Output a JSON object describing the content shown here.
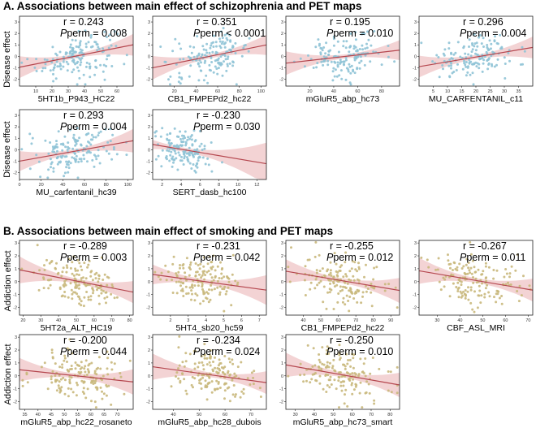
{
  "sections": {
    "a": {
      "title": "A. Associations between main effect of schizophrenia and PET maps",
      "ylabel": "Disease effect"
    },
    "b": {
      "title": "B. Associations between main effect of smoking and PET maps",
      "ylabel": "Addiction effect"
    }
  },
  "colors": {
    "schizophrenia_points": "#8fc3d6",
    "smoking_points": "#c9b87c",
    "fit_line": "#b5474f",
    "ci_band": "#efc4c6"
  },
  "chart_data": [
    {
      "type": "scatter",
      "section": "a",
      "xlabel": "5HT1b_P943_HC22",
      "r_text": "r = 0.243",
      "p_prefix": "P",
      "p_text": "perm = 0.008",
      "xlim": [
        0,
        70
      ],
      "ylim": [
        -2.6,
        3.5
      ],
      "xticks": [
        10,
        20,
        30,
        40,
        50,
        60
      ],
      "yticks": [
        -2,
        -1,
        0,
        1,
        2,
        3
      ],
      "fit": {
        "intercept": -0.95,
        "slope": 0.028
      },
      "x_center": 35,
      "x_spread": 12
    },
    {
      "type": "scatter",
      "section": "a",
      "xlabel": "CB1_FMPEPd2_hc22",
      "r_text": "r = 0.351",
      "p_prefix": "P",
      "p_text": "perm < 0.0001",
      "xlim": [
        0,
        105
      ],
      "ylim": [
        -2.6,
        3.5
      ],
      "xticks": [
        20,
        40,
        60,
        80,
        100
      ],
      "yticks": [
        -2,
        -1,
        0,
        1,
        2,
        3
      ],
      "fit": {
        "intercept": -1.0,
        "slope": 0.019
      },
      "x_center": 55,
      "x_spread": 18
    },
    {
      "type": "scatter",
      "section": "a",
      "xlabel": "mGluR5_abp_hc73",
      "r_text": "r = 0.195",
      "p_prefix": "P",
      "p_text": "perm = 0.010",
      "xlim": [
        0,
        95
      ],
      "ylim": [
        -2.6,
        3.5
      ],
      "xticks": [
        20,
        40,
        60,
        80
      ],
      "yticks": [
        -2,
        -1,
        0,
        1,
        2,
        3
      ],
      "fit": {
        "intercept": -0.6,
        "slope": 0.012
      },
      "x_center": 50,
      "x_spread": 16
    },
    {
      "type": "scatter",
      "section": "a",
      "xlabel": "MU_CARFENTANIL_c11",
      "r_text": "r = 0.296",
      "p_prefix": "P",
      "p_text": "perm = 0.004",
      "xlim": [
        0,
        40
      ],
      "ylim": [
        -2.6,
        3.5
      ],
      "xticks": [
        5,
        10,
        15,
        20,
        25,
        30,
        35
      ],
      "yticks": [
        -2,
        -1,
        0,
        1,
        2,
        3
      ],
      "fit": {
        "intercept": -0.9,
        "slope": 0.042
      },
      "x_center": 20,
      "x_spread": 7
    },
    {
      "type": "scatter",
      "section": "a",
      "xlabel": "MU_carfentanil_hc39",
      "r_text": "r = 0.293",
      "p_prefix": "P",
      "p_text": "perm = 0.004",
      "xlim": [
        0,
        105
      ],
      "ylim": [
        -2.6,
        3.5
      ],
      "xticks": [
        0,
        20,
        40,
        60,
        80,
        100
      ],
      "yticks": [
        -2,
        -1,
        0,
        1,
        2,
        3
      ],
      "fit": {
        "intercept": -1.0,
        "slope": 0.017
      },
      "x_center": 50,
      "x_spread": 18
    },
    {
      "type": "scatter",
      "section": "a",
      "xlabel": "SERT_dasb_hc100",
      "r_text": "r = -0.230",
      "p_prefix": "P",
      "p_text": "perm = 0.030",
      "xlim": [
        1,
        13
      ],
      "ylim": [
        -2.6,
        3.5
      ],
      "xticks": [
        2,
        4,
        6,
        8,
        10,
        12
      ],
      "yticks": [
        -2,
        -1,
        0,
        1,
        2,
        3
      ],
      "fit": {
        "intercept": 0.6,
        "slope": -0.14
      },
      "x_center": 4.2,
      "x_spread": 1.3
    },
    {
      "type": "scatter",
      "section": "b",
      "xlabel": "5HT2a_ALT_HC19",
      "r_text": "r = -0.289",
      "p_prefix": "P",
      "p_text": "perm = 0.003",
      "xlim": [
        18,
        82
      ],
      "ylim": [
        -2.6,
        3.2
      ],
      "xticks": [
        20,
        30,
        40,
        50,
        60,
        70,
        80
      ],
      "yticks": [
        -2,
        -1,
        0,
        1,
        2,
        3
      ],
      "fit": {
        "intercept": 1.4,
        "slope": -0.027
      },
      "x_center": 52,
      "x_spread": 12
    },
    {
      "type": "scatter",
      "section": "b",
      "xlabel": "5HT4_sb20_hc59",
      "r_text": "r = -0.231",
      "p_prefix": "P",
      "p_text": "perm = 0.042",
      "xlim": [
        1,
        7.4
      ],
      "ylim": [
        -2.6,
        3.2
      ],
      "xticks": [
        2,
        3,
        4,
        5,
        6,
        7
      ],
      "yticks": [
        -2,
        -1,
        0,
        1,
        2,
        3
      ],
      "fit": {
        "intercept": 0.75,
        "slope": -0.19
      },
      "x_center": 3.8,
      "x_spread": 1.1
    },
    {
      "type": "scatter",
      "section": "b",
      "xlabel": "CB1_FMPEPd2_hc22",
      "r_text": "r = -0.255",
      "p_prefix": "P",
      "p_text": "perm = 0.012",
      "xlim": [
        30,
        95
      ],
      "ylim": [
        -2.6,
        3.2
      ],
      "xticks": [
        40,
        50,
        60,
        70,
        80,
        90
      ],
      "yticks": [
        -2,
        -1,
        0,
        1,
        2,
        3
      ],
      "fit": {
        "intercept": 1.5,
        "slope": -0.023
      },
      "x_center": 62,
      "x_spread": 12
    },
    {
      "type": "scatter",
      "section": "b",
      "xlabel": "CBF_ASL_MRI",
      "r_text": "r = -0.267",
      "p_prefix": "P",
      "p_text": "perm = 0.011",
      "xlim": [
        22,
        72
      ],
      "ylim": [
        -2.6,
        3.2
      ],
      "xticks": [
        30,
        40,
        50,
        60,
        70
      ],
      "yticks": [
        -2,
        -1,
        0,
        1,
        2,
        3
      ],
      "fit": {
        "intercept": 1.5,
        "slope": -0.03
      },
      "x_center": 48,
      "x_spread": 9
    },
    {
      "type": "scatter",
      "section": "b",
      "xlabel": "mGluR5_abp_hc22_rosaneto",
      "r_text": "r = -0.200",
      "p_prefix": "P",
      "p_text": "perm = 0.044",
      "xlim": [
        33,
        76
      ],
      "ylim": [
        -2.6,
        3.2
      ],
      "xticks": [
        35,
        40,
        45,
        50,
        55,
        60,
        65,
        70
      ],
      "yticks": [
        -2,
        -1,
        0,
        1,
        2,
        3
      ],
      "fit": {
        "intercept": 1.2,
        "slope": -0.022
      },
      "x_center": 54,
      "x_spread": 8
    },
    {
      "type": "scatter",
      "section": "b",
      "xlabel": "mGluR5_abp_hc28_dubois",
      "r_text": "r = -0.234",
      "p_prefix": "P",
      "p_text": "perm = 0.024",
      "xlim": [
        32,
        76
      ],
      "ylim": [
        -2.6,
        3.2
      ],
      "xticks": [
        40,
        50,
        60,
        70
      ],
      "yticks": [
        -2,
        -1,
        0,
        1,
        2,
        3
      ],
      "fit": {
        "intercept": 1.6,
        "slope": -0.028
      },
      "x_center": 55,
      "x_spread": 8
    },
    {
      "type": "scatter",
      "section": "b",
      "xlabel": "mGluR5_abp_hc73_smart",
      "r_text": "r = -0.250",
      "p_prefix": "P",
      "p_text": "perm = 0.010",
      "xlim": [
        25,
        85
      ],
      "ylim": [
        -2.6,
        3.2
      ],
      "xticks": [
        30,
        40,
        50,
        60,
        70,
        80
      ],
      "yticks": [
        -2,
        -1,
        0,
        1,
        2,
        3
      ],
      "fit": {
        "intercept": 1.5,
        "slope": -0.026
      },
      "x_center": 55,
      "x_spread": 11
    }
  ]
}
